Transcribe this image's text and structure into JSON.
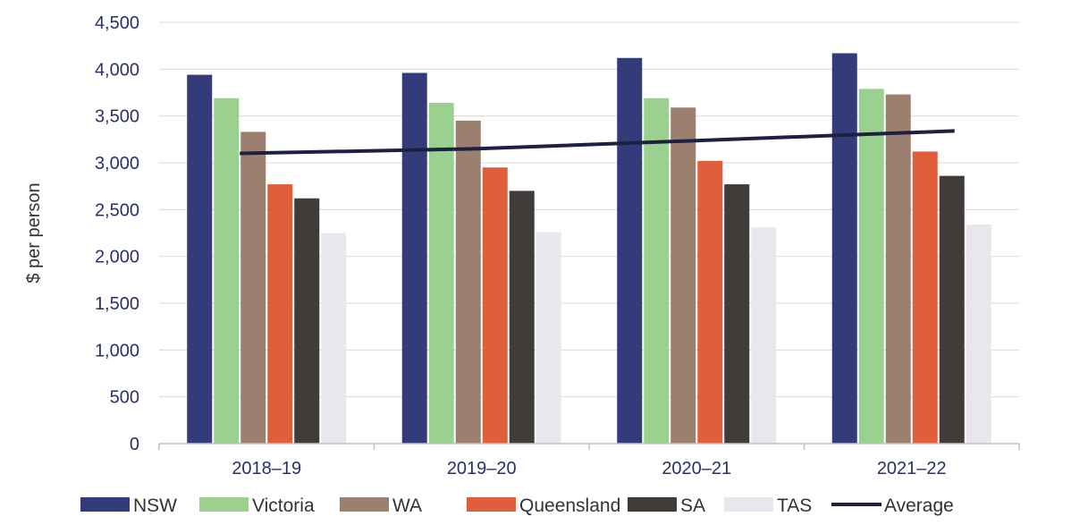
{
  "chart_data": {
    "type": "bar",
    "title": "",
    "xlabel": "",
    "ylabel": "$ per person",
    "ylim": [
      0,
      4500
    ],
    "yticks": [
      0,
      500,
      1000,
      1500,
      2000,
      2500,
      3000,
      3500,
      4000,
      4500
    ],
    "ytick_labels": [
      "0",
      "500",
      "1,000",
      "1,500",
      "2,000",
      "2,500",
      "3,000",
      "3,500",
      "4,000",
      "4,500"
    ],
    "categories": [
      "2018–19",
      "2019–20",
      "2020–21",
      "2021–22"
    ],
    "grid": true,
    "legend_position": "bottom",
    "series": [
      {
        "name": "NSW",
        "color": "#343b7a",
        "values": [
          3940,
          3960,
          4120,
          4170
        ]
      },
      {
        "name": "Victoria",
        "color": "#9bd18f",
        "values": [
          3690,
          3640,
          3690,
          3790
        ]
      },
      {
        "name": "WA",
        "color": "#9b8070",
        "values": [
          3330,
          3450,
          3590,
          3730
        ]
      },
      {
        "name": "Queensland",
        "color": "#e05f3a",
        "values": [
          2770,
          2950,
          3020,
          3120
        ]
      },
      {
        "name": "SA",
        "color": "#413b3a",
        "values": [
          2620,
          2700,
          2770,
          2860
        ]
      },
      {
        "name": "TAS",
        "color": "#e8e8ec",
        "values": [
          2250,
          2260,
          2310,
          2340
        ]
      }
    ],
    "line_series": {
      "name": "Average",
      "color": "#1c2140",
      "values": [
        3100,
        3150,
        3245,
        3340
      ]
    }
  }
}
